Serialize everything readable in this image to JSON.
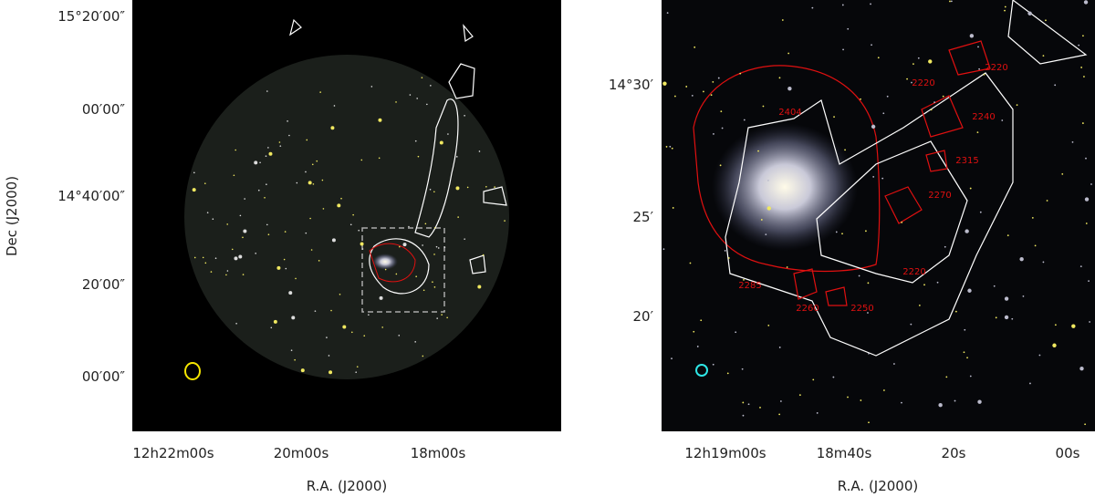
{
  "panels": [
    {
      "x_ticks": [
        "12h22m00s",
        "20m00s",
        "18m00s"
      ],
      "y_ticks": [
        "15°20′00″",
        "00′00″",
        "14°40′00″",
        "20′00″",
        "00′00″"
      ],
      "x_label": "R.A. (J2000)",
      "y_label": "Dec (J2000)"
    },
    {
      "x_ticks": [
        "12h19m00s",
        "18m40s",
        "20s",
        "00s"
      ],
      "y_ticks": [
        "14°30′",
        "25′",
        "20′"
      ],
      "x_label": "R.A. (J2000)",
      "contour_labels": [
        "2404",
        "2220",
        "2220",
        "2240",
        "2315",
        "2270",
        "2220",
        "2285",
        "2260",
        "2250"
      ]
    }
  ]
}
